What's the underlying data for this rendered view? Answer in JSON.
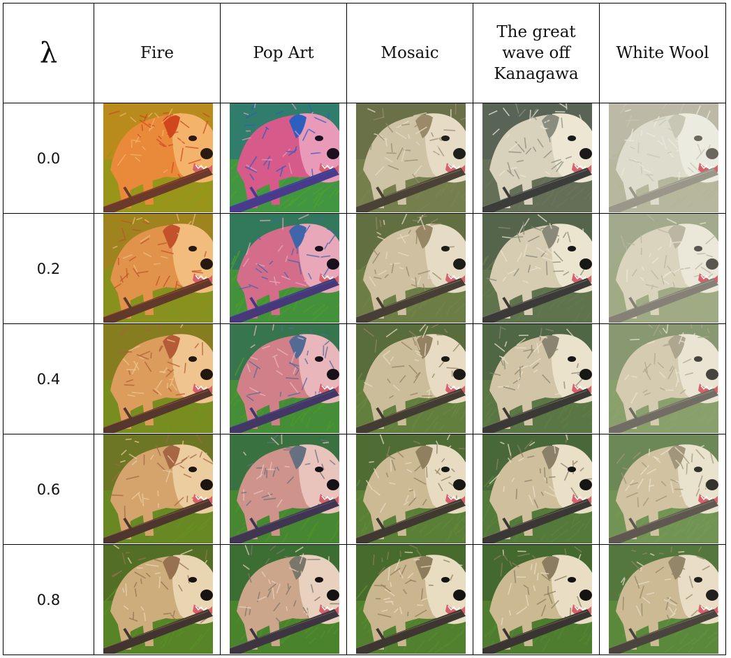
{
  "table": {
    "lambda_header": "λ",
    "styles": [
      {
        "name": "Fire",
        "palette": {
          "bg": "#b98a1c",
          "grass": "#8c9a1a",
          "fur": "#e88a3a",
          "furLight": "#f4b36a",
          "stick": "#6a3a2a",
          "accent": "#d2461e",
          "eye": "#2a1a10"
        }
      },
      {
        "name": "Pop Art",
        "palette": {
          "bg": "#2f7d6a",
          "grass": "#4aa030",
          "fur": "#d65a8a",
          "furLight": "#e89ab8",
          "stick": "#4a3a8c",
          "accent": "#2b5fc0",
          "eye": "#1a1020"
        }
      },
      {
        "name": "Mosaic",
        "palette": {
          "bg": "#6a7048",
          "grass": "#7a8450",
          "fur": "#cfc3a6",
          "furLight": "#e6dcc6",
          "stick": "#4a4236",
          "accent": "#9a8a6a",
          "eye": "#20201a"
        }
      },
      {
        "name": "The great wave off Kanagawa",
        "palette": {
          "bg": "#5a6456",
          "grass": "#6a7458",
          "fur": "#d8d2bc",
          "furLight": "#ece6d2",
          "stick": "#3c3c3a",
          "accent": "#8a8c80",
          "eye": "#1a1a1a"
        }
      },
      {
        "name": "White Wool",
        "palette": {
          "bg": "#bcbaa6",
          "grass": "#b4b69a",
          "fur": "#dedccc",
          "furLight": "#ecebe0",
          "stick": "#9a968a",
          "accent": "#c8c6b4",
          "eye": "#6a685e"
        }
      }
    ],
    "rows": [
      {
        "lambda": "0.0",
        "lambda_num": 0.0
      },
      {
        "lambda": "0.2",
        "lambda_num": 0.2
      },
      {
        "lambda": "0.4",
        "lambda_num": 0.4
      },
      {
        "lambda": "0.6",
        "lambda_num": 0.6
      },
      {
        "lambda": "0.8",
        "lambda_num": 0.8
      }
    ],
    "content_palette": {
      "bg": "#3f6a28",
      "grass": "#4f8a2a",
      "fur": "#c9b48a",
      "furLight": "#e8dcc0",
      "stick": "#3a3430",
      "accent": "#8a7a5a",
      "eye": "#141210"
    }
  }
}
